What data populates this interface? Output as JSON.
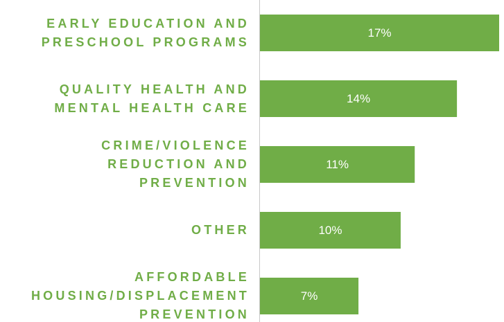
{
  "chart_data": {
    "type": "bar",
    "orientation": "horizontal",
    "categories": [
      "EARLY EDUCATION AND PRESCHOOL PROGRAMS",
      "QUALITY HEALTH AND MENTAL HEALTH CARE",
      "CRIME/VIOLENCE REDUCTION AND PREVENTION",
      "OTHER",
      "AFFORDABLE HOUSING/DISPLACEMENT PREVENTION"
    ],
    "values": [
      17,
      14,
      11,
      10,
      7
    ],
    "value_labels": [
      "17%",
      "14%",
      "11%",
      "10%",
      "7%"
    ],
    "color": "#70ad47",
    "xlim": [
      0,
      17
    ]
  }
}
